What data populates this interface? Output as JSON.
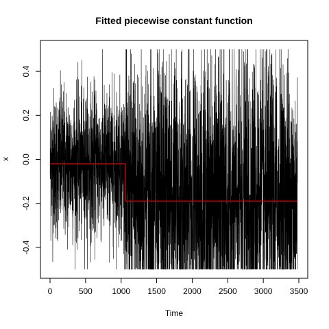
{
  "chart_data": {
    "type": "line",
    "title": "Fitted piecewise constant function",
    "xlabel": "Time",
    "ylabel": "x",
    "xlim": [
      0,
      3500
    ],
    "ylim": [
      -0.5,
      0.5
    ],
    "x_ticks": [
      0,
      500,
      1000,
      1500,
      2000,
      2500,
      3000,
      3500
    ],
    "x_tick_labels": [
      "0",
      "500",
      "1000",
      "1500",
      "2000",
      "2500",
      "3000",
      "3500"
    ],
    "y_ticks": [
      -0.4,
      -0.2,
      0.0,
      0.2,
      0.4
    ],
    "y_tick_labels": [
      "-0.4",
      "-0.2",
      "0.0",
      "0.2",
      "0.4"
    ],
    "grid": false,
    "legend": "none",
    "series": [
      {
        "role": "observed series",
        "color": "#000000",
        "n_points": 3480,
        "segments": [
          {
            "x_start": 1,
            "x_end": 1060,
            "mean": -0.02,
            "min": -0.5,
            "max": 0.5
          },
          {
            "x_start": 1061,
            "x_end": 3480,
            "mean": -0.19,
            "min": -0.5,
            "max": 0.5
          }
        ]
      },
      {
        "role": "fitted piecewise constant",
        "color": "#cc0000",
        "steps": [
          {
            "x_start": 1,
            "x_end": 1060,
            "y": -0.02
          },
          {
            "x_start": 1060,
            "x_end": 3480,
            "y": -0.19
          }
        ]
      }
    ]
  }
}
